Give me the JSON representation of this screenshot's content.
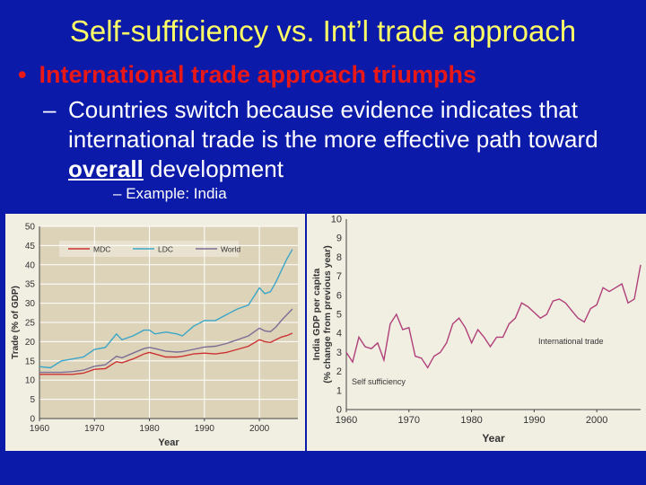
{
  "slide": {
    "title": "Self-sufficiency vs. Int’l trade approach",
    "bullet1": "International trade approach triumphs",
    "sub1_before": "Countries switch because evidence indicates that international trade is the more effective path toward ",
    "sub1_emph": "overall",
    "sub1_after": " development",
    "sub2": "Example: India",
    "dash": "–",
    "bullet": "•",
    "colors": {
      "background": "#0b1aa8",
      "title": "#ffff66",
      "bullet": "#e81818",
      "text": "#ffffff"
    }
  },
  "chart_data": [
    {
      "type": "line",
      "xlabel": "Year",
      "ylabel": "Trade (% of GDP)",
      "xlim": [
        1960,
        2007
      ],
      "ylim": [
        0,
        50
      ],
      "x_ticks": [
        "1960",
        "1970",
        "1980",
        "1990",
        "2000"
      ],
      "y_ticks": [
        "0",
        "5",
        "10",
        "15",
        "20",
        "25",
        "30",
        "35",
        "40",
        "45",
        "50"
      ],
      "legend_position": "top",
      "series": [
        {
          "name": "MDC",
          "color": "#cc3333",
          "x": [
            1960,
            1962,
            1964,
            1966,
            1968,
            1970,
            1972,
            1974,
            1975,
            1977,
            1979,
            1980,
            1981,
            1983,
            1985,
            1986,
            1988,
            1990,
            1992,
            1994,
            1996,
            1998,
            2000,
            2001,
            2002,
            2003,
            2004,
            2005,
            2006
          ],
          "values": [
            11.5,
            11.5,
            11.5,
            11.5,
            11.8,
            12.8,
            13.0,
            14.8,
            14.5,
            15.5,
            16.8,
            17.2,
            16.8,
            16.0,
            16.0,
            16.2,
            16.8,
            17.0,
            16.8,
            17.2,
            18.0,
            18.8,
            20.5,
            20.0,
            19.8,
            20.5,
            21.2,
            21.6,
            22.2
          ]
        },
        {
          "name": "LDC",
          "color": "#3aa6c8",
          "x": [
            1960,
            1962,
            1964,
            1966,
            1968,
            1970,
            1972,
            1974,
            1975,
            1977,
            1979,
            1980,
            1981,
            1983,
            1985,
            1986,
            1988,
            1990,
            1992,
            1994,
            1996,
            1998,
            2000,
            2001,
            2002,
            2003,
            2004,
            2005,
            2006
          ],
          "values": [
            13.5,
            13.2,
            15.0,
            15.5,
            16.0,
            18.0,
            18.5,
            22.0,
            20.5,
            21.5,
            23.0,
            23.0,
            22.0,
            22.5,
            22.0,
            21.5,
            24.0,
            25.5,
            25.5,
            27.0,
            28.5,
            29.5,
            34.0,
            32.5,
            33.0,
            35.5,
            38.5,
            41.5,
            44.0
          ]
        },
        {
          "name": "World",
          "color": "#7c6e96",
          "x": [
            1960,
            1962,
            1964,
            1966,
            1968,
            1970,
            1972,
            1974,
            1975,
            1977,
            1979,
            1980,
            1981,
            1983,
            1985,
            1986,
            1988,
            1990,
            1992,
            1994,
            1996,
            1998,
            2000,
            2001,
            2002,
            2003,
            2004,
            2005,
            2006
          ],
          "values": [
            12.0,
            12.0,
            12.0,
            12.2,
            12.6,
            13.6,
            14.0,
            16.2,
            15.8,
            17.0,
            18.2,
            18.5,
            18.2,
            17.5,
            17.3,
            17.4,
            18.0,
            18.6,
            18.8,
            19.5,
            20.5,
            21.5,
            23.5,
            22.8,
            22.6,
            23.8,
            25.5,
            27.0,
            28.5
          ]
        }
      ]
    },
    {
      "type": "line",
      "xlabel": "Year",
      "ylabel": "India GDP per capita (% change from previous year)",
      "xlim": [
        1960,
        2007
      ],
      "ylim": [
        0,
        10
      ],
      "x_ticks": [
        "1960",
        "1970",
        "1980",
        "1990",
        "2000"
      ],
      "y_ticks": [
        "0",
        "1",
        "2",
        "3",
        "4",
        "5",
        "6",
        "7",
        "8",
        "9",
        "10"
      ],
      "annotations": [
        "Self sufficiency",
        "International trade"
      ],
      "series": [
        {
          "color": "#b0407a",
          "x": [
            1960,
            1961,
            1962,
            1963,
            1964,
            1965,
            1966,
            1967,
            1968,
            1969,
            1970,
            1971,
            1972,
            1973,
            1974,
            1975,
            1976,
            1977,
            1978,
            1979,
            1980,
            1981,
            1982,
            1983,
            1984,
            1985,
            1986,
            1987,
            1988,
            1989,
            1990,
            1991,
            1992,
            1993,
            1994,
            1995,
            1996,
            1997,
            1998,
            1999,
            2000,
            2001,
            2002,
            2003,
            2004,
            2005,
            2006,
            2007
          ],
          "values": [
            3.0,
            2.5,
            3.8,
            3.3,
            3.2,
            3.5,
            2.6,
            4.5,
            5.0,
            4.2,
            4.3,
            2.8,
            2.7,
            2.2,
            2.8,
            3.0,
            3.5,
            4.5,
            4.8,
            4.3,
            3.5,
            4.2,
            3.8,
            3.3,
            3.8,
            3.8,
            4.5,
            4.8,
            5.6,
            5.4,
            5.1,
            4.8,
            5.0,
            5.7,
            5.8,
            5.6,
            5.2,
            4.8,
            4.6,
            5.3,
            5.5,
            6.4,
            6.2,
            6.4,
            6.6,
            5.6,
            5.8,
            7.6
          ]
        }
      ]
    }
  ]
}
